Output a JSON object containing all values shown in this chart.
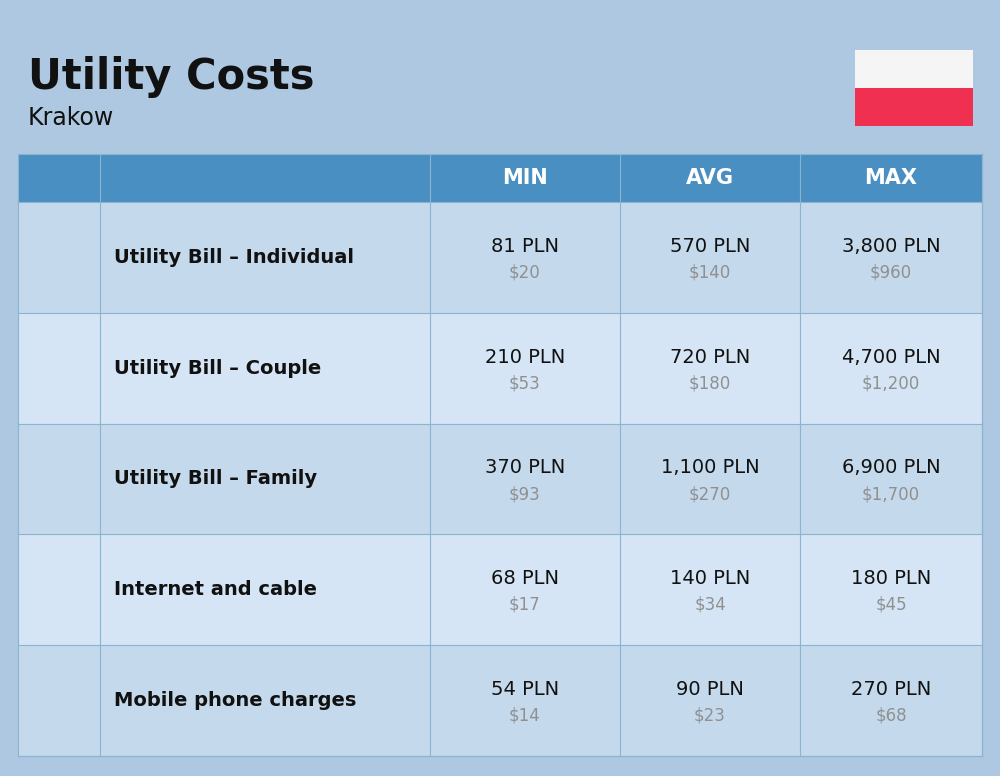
{
  "title": "Utility Costs",
  "subtitle": "Krakow",
  "bg_color": "#adc8e0",
  "header_bg": "#4a8fc2",
  "header_text_color": "#ffffff",
  "row_bg_even": "#c5d9ec",
  "row_bg_odd": "#d5e5f5",
  "col_headers": [
    "MIN",
    "AVG",
    "MAX"
  ],
  "rows": [
    {
      "label": "Utility Bill – Individual",
      "min_pln": "81 PLN",
      "min_usd": "$20",
      "avg_pln": "570 PLN",
      "avg_usd": "$140",
      "max_pln": "3,800 PLN",
      "max_usd": "$960"
    },
    {
      "label": "Utility Bill – Couple",
      "min_pln": "210 PLN",
      "min_usd": "$53",
      "avg_pln": "720 PLN",
      "avg_usd": "$180",
      "max_pln": "4,700 PLN",
      "max_usd": "$1,200"
    },
    {
      "label": "Utility Bill – Family",
      "min_pln": "370 PLN",
      "min_usd": "$93",
      "avg_pln": "1,100 PLN",
      "avg_usd": "$270",
      "max_pln": "6,900 PLN",
      "max_usd": "$1,700"
    },
    {
      "label": "Internet and cable",
      "min_pln": "68 PLN",
      "min_usd": "$17",
      "avg_pln": "140 PLN",
      "avg_usd": "$34",
      "max_pln": "180 PLN",
      "max_usd": "$45"
    },
    {
      "label": "Mobile phone charges",
      "min_pln": "54 PLN",
      "min_usd": "$14",
      "avg_pln": "90 PLN",
      "avg_usd": "$23",
      "max_pln": "270 PLN",
      "max_usd": "$68"
    }
  ],
  "flag_white": "#f5f5f5",
  "flag_red": "#f03050",
  "divider_color": "#8ab4d0",
  "usd_color": "#909090",
  "text_color": "#111111",
  "title_fontsize": 30,
  "subtitle_fontsize": 17,
  "header_fontsize": 15,
  "label_fontsize": 14,
  "pln_fontsize": 14,
  "usd_fontsize": 12
}
